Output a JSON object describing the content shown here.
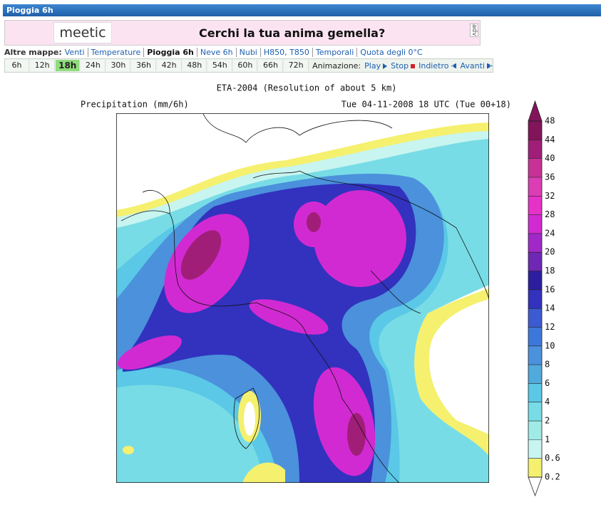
{
  "header": {
    "title": "Pioggia 6h"
  },
  "ad": {
    "logo": "meetic",
    "text": "Cerchi la tua anima gemella?",
    "tag": "adv"
  },
  "maps_nav": {
    "label": "Altre mappe:",
    "links": [
      "Venti",
      "Temperature",
      "Pioggia 6h",
      "Neve 6h",
      "Nubi",
      "H850, T850",
      "Temporali",
      "Quota degli 0°C"
    ],
    "current": 2
  },
  "time_tabs": {
    "tabs": [
      "6h",
      "12h",
      "18h",
      "24h",
      "30h",
      "36h",
      "42h",
      "48h",
      "54h",
      "60h",
      "66h",
      "72h"
    ],
    "selected": 2
  },
  "animation": {
    "label": "Animazione:",
    "controls": [
      "Play",
      "Stop",
      "Indietro",
      "Avanti"
    ]
  },
  "map": {
    "title": "ETA-2004 (Resolution of about 5 km)",
    "variable": "Precipitation (mm/6h)",
    "valid_time": "Tue 04-11-2008 18 UTC (Tue 00+18)",
    "colorbar": {
      "labels": [
        0.2,
        0.6,
        1,
        2,
        4,
        6,
        8,
        10,
        12,
        14,
        16,
        18,
        20,
        24,
        28,
        32,
        36,
        40,
        44,
        48
      ],
      "colors": [
        "#f5f06e",
        "#c8f5f0",
        "#a0ebe6",
        "#78dce6",
        "#5ac8e6",
        "#50aadc",
        "#4b91dc",
        "#3c78dc",
        "#3c5ad2",
        "#3232be",
        "#2d1ea0",
        "#6e28b4",
        "#a028c8",
        "#d22ad2",
        "#e632c8",
        "#dc3cb4",
        "#c83296",
        "#a01e78",
        "#82145a"
      ]
    }
  }
}
